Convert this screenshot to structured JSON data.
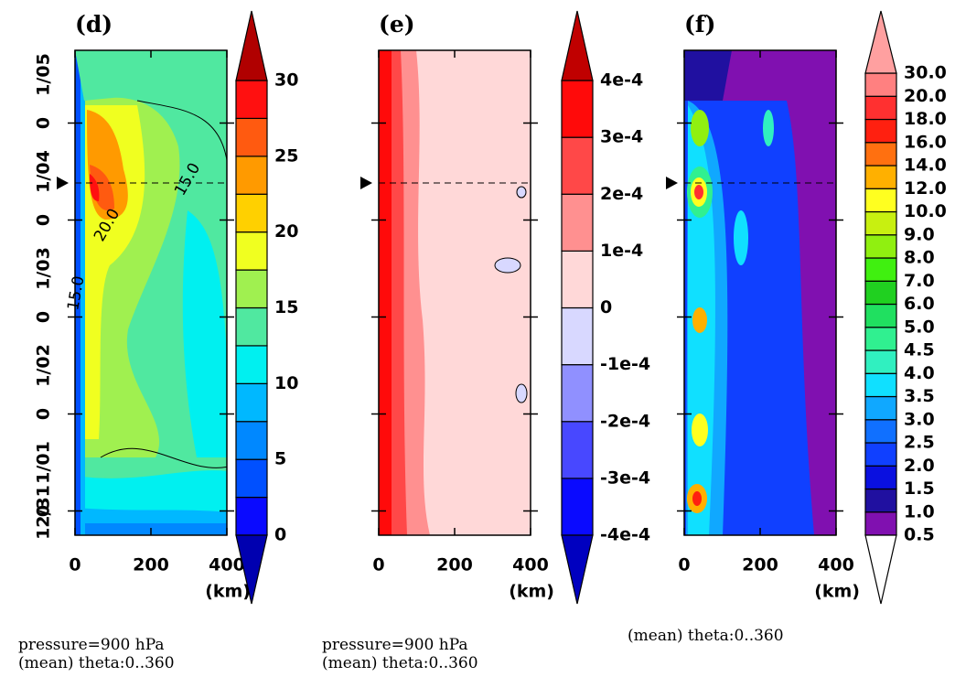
{
  "chart_data": [
    {
      "type": "contour",
      "panel": "(d)",
      "xlabel": "(km)",
      "xlim": [
        0,
        400
      ],
      "xticks": [
        0,
        200,
        400
      ],
      "ylim": [
        0,
        5
      ],
      "yticks": [
        {
          "value": 0,
          "label": "12/31"
        },
        {
          "value": 0.25,
          "label": "0"
        },
        {
          "value": 0.75,
          "label": "1/01"
        },
        {
          "value": 1.25,
          "label": "0"
        },
        {
          "value": 1.75,
          "label": "1/02"
        },
        {
          "value": 2.25,
          "label": "0"
        },
        {
          "value": 2.75,
          "label": "1/03"
        },
        {
          "value": 3.25,
          "label": "0"
        },
        {
          "value": 3.75,
          "label": "1/04"
        },
        {
          "value": 4.25,
          "label": "0"
        },
        {
          "value": 4.75,
          "label": "1/05"
        }
      ],
      "clim": [
        0,
        30
      ],
      "cticks": [
        0,
        5,
        10,
        15,
        20,
        25,
        30
      ],
      "colors": [
        "#0a0aff",
        "#0050ff",
        "#0088ff",
        "#00b8ff",
        "#00f0f0",
        "#50e8a0",
        "#a0f050",
        "#f0ff20",
        "#ffd000",
        "#ff9a00",
        "#ff5a10",
        "#ff1010"
      ],
      "extend_colors": [
        "#0000b0",
        "#b00000"
      ],
      "contour_labels": [
        "15.0",
        "20.0",
        "15.0"
      ],
      "caption": [
        "pressure=900 hPa",
        "(mean) theta:0..360"
      ]
    },
    {
      "type": "contour",
      "panel": "(e)",
      "xlabel": "(km)",
      "xlim": [
        0,
        400
      ],
      "xticks": [
        0,
        200,
        400
      ],
      "ylim": [
        0,
        5
      ],
      "clim": [
        -0.0004,
        0.0004
      ],
      "cticks": [
        {
          "value": 0.0004,
          "label": "4e-4"
        },
        {
          "value": 0.0003,
          "label": "3e-4"
        },
        {
          "value": 0.0002,
          "label": "2e-4"
        },
        {
          "value": 0.0001,
          "label": "1e-4"
        },
        0,
        {
          "value": -0.0001,
          "label": "-1e-4"
        },
        {
          "value": -0.0002,
          "label": "-2e-4"
        },
        {
          "value": -0.0003,
          "label": "-3e-4"
        },
        {
          "value": -0.0004,
          "label": "-4e-4"
        }
      ],
      "colors": [
        "#0a0aff",
        "#4848ff",
        "#9090ff",
        "#d8d8ff",
        "#ffd8d8",
        "#ff9090",
        "#ff4848",
        "#ff0a0a"
      ],
      "extend_colors": [
        "#0000c0",
        "#c00000"
      ],
      "caption": [
        "pressure=900 hPa",
        "(mean) theta:0..360"
      ]
    },
    {
      "type": "contour",
      "panel": "(f)",
      "xlabel": "(km)",
      "xlim": [
        0,
        400
      ],
      "xticks": [
        0,
        200,
        400
      ],
      "ylim": [
        0,
        5
      ],
      "cticks": [
        {
          "value": 30,
          "label": "30.0"
        },
        {
          "value": 20,
          "label": "20.0"
        },
        {
          "value": 18,
          "label": "18.0"
        },
        {
          "value": 16,
          "label": "16.0"
        },
        {
          "value": 14,
          "label": "14.0"
        },
        {
          "value": 12,
          "label": "12.0"
        },
        {
          "value": 10,
          "label": "10.0"
        },
        {
          "value": 9,
          "label": "9.0"
        },
        {
          "value": 8,
          "label": "8.0"
        },
        {
          "value": 7,
          "label": "7.0"
        },
        {
          "value": 6,
          "label": "6.0"
        },
        {
          "value": 5,
          "label": "5.0"
        },
        4.5,
        {
          "value": 4,
          "label": "4.0"
        },
        3.5,
        {
          "value": 3,
          "label": "3.0"
        },
        2.5,
        {
          "value": 2,
          "label": "2.0"
        },
        1.5,
        {
          "value": 1,
          "label": "1.0"
        },
        0.5
      ],
      "colors": [
        "#8010b0",
        "#2010a0",
        "#0a10e0",
        "#1040ff",
        "#1070ff",
        "#10a8ff",
        "#10e0ff",
        "#30f0c0",
        "#30f090",
        "#20e060",
        "#20d020",
        "#40f010",
        "#90f010",
        "#c8f010",
        "#ffff20",
        "#ffb000",
        "#ff7010",
        "#ff2010",
        "#ff3030",
        "#ff8080"
      ],
      "extend_colors": [
        "#ffffff",
        "#ffa0a0"
      ],
      "caption": [
        "(mean) theta:0..360"
      ]
    }
  ]
}
